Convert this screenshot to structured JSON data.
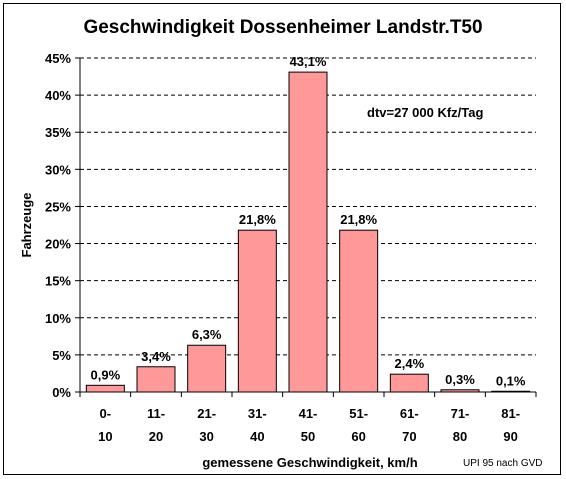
{
  "chart_data": {
    "type": "bar",
    "title": "Geschwindigkeit Dossenheimer Landstr.T50",
    "xlabel": "gemessene Geschwindigkeit, km/h",
    "ylabel": "Fahrzeuge",
    "categories": [
      [
        "0-",
        "10"
      ],
      [
        "11-",
        "20"
      ],
      [
        "21-",
        "30"
      ],
      [
        "31-",
        "40"
      ],
      [
        "41-",
        "50"
      ],
      [
        "51-",
        "60"
      ],
      [
        "61-",
        "70"
      ],
      [
        "71-",
        "80"
      ],
      [
        "81-",
        "90"
      ]
    ],
    "values": [
      0.9,
      3.4,
      6.3,
      21.8,
      43.1,
      21.8,
      2.4,
      0.3,
      0.1
    ],
    "data_labels": [
      "0,9%",
      "3,4%",
      "6,3%",
      "21,8%",
      "43,1%",
      "21,8%",
      "2,4%",
      "0,3%",
      "0,1%"
    ],
    "ylim": [
      0,
      45
    ],
    "yticks": [
      0,
      5,
      10,
      15,
      20,
      25,
      30,
      35,
      40,
      45
    ],
    "ytick_labels": [
      "0%",
      "5%",
      "10%",
      "15%",
      "20%",
      "25%",
      "30%",
      "35%",
      "40%",
      "45%"
    ],
    "annotation": "dtv=27 000 Kfz/Tag",
    "source_note": "UPI 95 nach GVD",
    "grid": true,
    "grid_style": "dashed",
    "bar_color": "#ff9999",
    "bar_edge_color": "#000000"
  }
}
